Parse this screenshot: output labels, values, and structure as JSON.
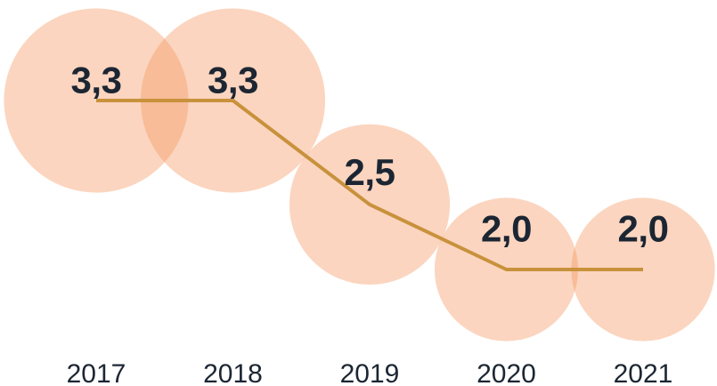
{
  "chart_data": {
    "type": "bubble-line",
    "title": "",
    "categories": [
      "2017",
      "2018",
      "2019",
      "2020",
      "2021"
    ],
    "values": [
      3.3,
      3.3,
      2.5,
      2.0,
      2.0
    ],
    "value_labels": [
      "3,3",
      "3,3",
      "2,5",
      "2,0",
      "2,0"
    ],
    "decimal_separator": ",",
    "legend": "none",
    "grid": false,
    "axes_visible": false,
    "bubble_area_proportional_to_value": true,
    "value_range_mapped": [
      2.0,
      3.3
    ],
    "colors": {
      "bubble_base": "#F6965F",
      "bubble_alpha": 0.4,
      "bubble_single_appearance": "#FBD5C0",
      "bubble_overlap_appearance": "#F9BC9B",
      "line": "#C8913C",
      "label_text": "#1C2633",
      "background": "#FFFFFF"
    }
  }
}
